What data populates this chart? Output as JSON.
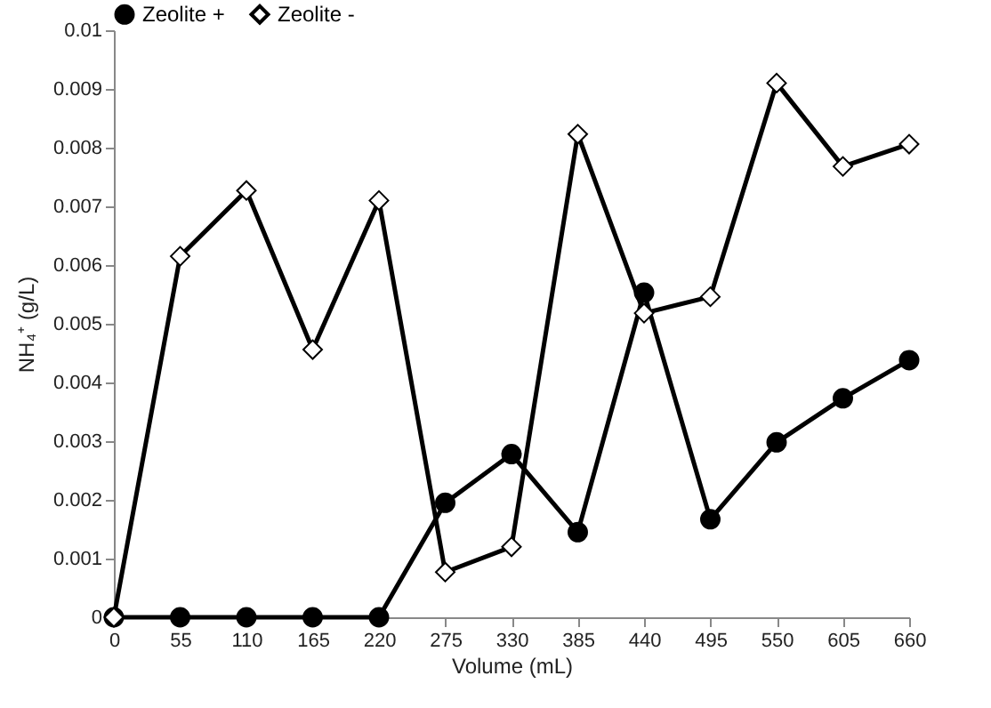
{
  "chart_data": {
    "type": "line",
    "xlabel": "Volume (mL)",
    "ylabel": "NH₄⁺ (g/L)",
    "x": [
      0,
      55,
      110,
      165,
      220,
      275,
      330,
      385,
      440,
      495,
      550,
      605,
      660
    ],
    "series": [
      {
        "name": "Zeolite +",
        "color": "#000000",
        "marker": "circle",
        "values": [
          0,
          0,
          0,
          0,
          0,
          0.00195,
          0.00278,
          0.00145,
          0.00553,
          0.00167,
          0.00298,
          0.00373,
          0.00438
        ]
      },
      {
        "name": "Zeolite -",
        "color": "#000000",
        "marker": "diamond",
        "values": [
          0,
          0.00615,
          0.00727,
          0.00456,
          0.0071,
          0.00077,
          0.0012,
          0.00823,
          0.00518,
          0.00546,
          0.0091,
          0.00768,
          0.00806
        ]
      }
    ],
    "xlim": [
      0,
      660
    ],
    "xticks": [
      0,
      55,
      110,
      165,
      220,
      275,
      330,
      385,
      440,
      495,
      550,
      605,
      660
    ],
    "ylim": [
      0,
      0.01
    ],
    "yticks": [
      0,
      0.001,
      0.002,
      0.003,
      0.004,
      0.005,
      0.006,
      0.007,
      0.008,
      0.009,
      0.01
    ],
    "grid": false,
    "legend": "top",
    "line_style": "solid"
  }
}
